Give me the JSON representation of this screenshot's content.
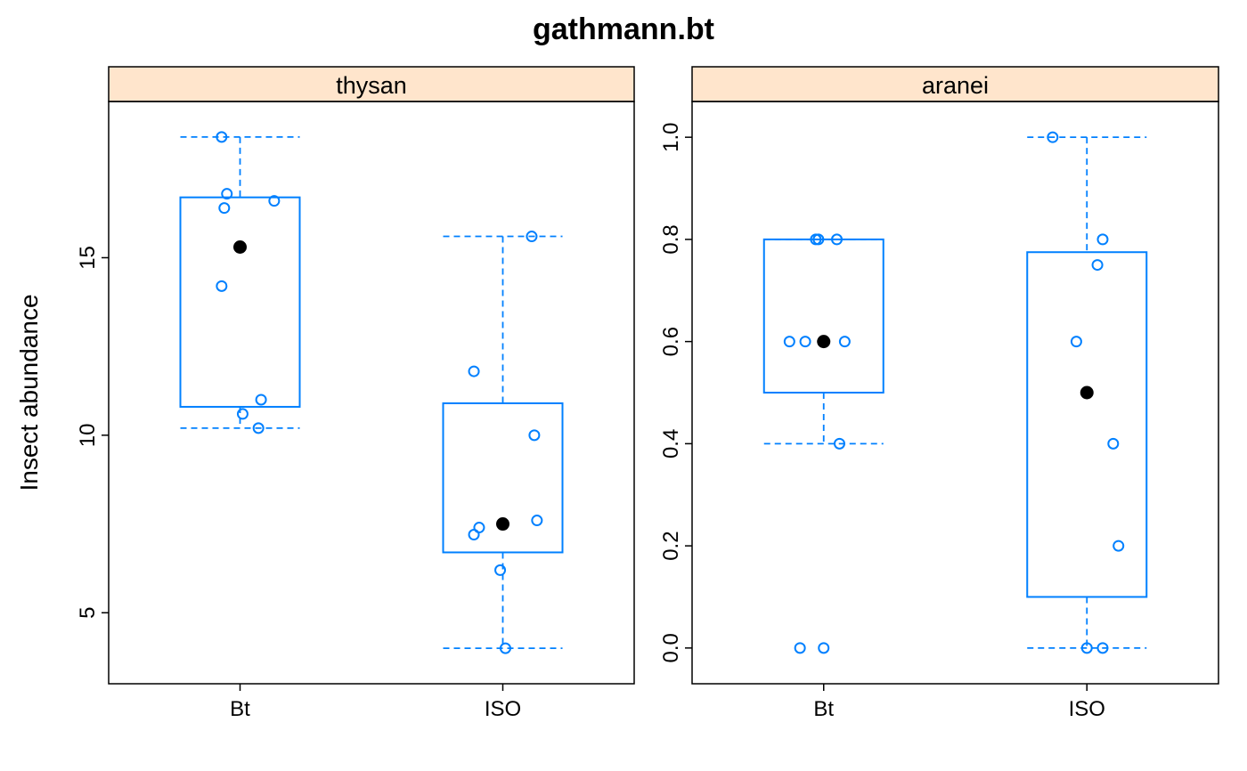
{
  "colors": {
    "box": "#0080ff",
    "strip_bg": "#ffe5cc",
    "median": "#000000",
    "frame": "#000000"
  },
  "chart_data": {
    "type": "box",
    "title": "gathmann.bt",
    "ylabel": "Insect abundance",
    "xlabel": "",
    "categories": [
      "Bt",
      "ISO"
    ],
    "grid": false,
    "panels": [
      {
        "name": "thysan",
        "ylim": [
          3,
          19.4
        ],
        "yticks": [
          5,
          10,
          15
        ],
        "boxes": [
          {
            "category": "Bt",
            "min": 10.2,
            "q1": 10.8,
            "median": 15.3,
            "q3": 16.7,
            "max": 18.4
          },
          {
            "category": "ISO",
            "min": 4.0,
            "q1": 6.7,
            "median": 7.5,
            "q3": 10.9,
            "max": 15.6
          }
        ],
        "points": [
          {
            "category": "Bt",
            "x_jitter": -0.07,
            "y": 18.4
          },
          {
            "category": "Bt",
            "x_jitter": -0.05,
            "y": 16.8
          },
          {
            "category": "Bt",
            "x_jitter": 0.13,
            "y": 16.6
          },
          {
            "category": "Bt",
            "x_jitter": -0.06,
            "y": 16.4
          },
          {
            "category": "Bt",
            "x_jitter": -0.07,
            "y": 14.2
          },
          {
            "category": "Bt",
            "x_jitter": 0.08,
            "y": 11.0
          },
          {
            "category": "Bt",
            "x_jitter": 0.01,
            "y": 10.6
          },
          {
            "category": "Bt",
            "x_jitter": 0.07,
            "y": 10.2
          },
          {
            "category": "ISO",
            "x_jitter": 0.11,
            "y": 15.6
          },
          {
            "category": "ISO",
            "x_jitter": -0.11,
            "y": 11.8
          },
          {
            "category": "ISO",
            "x_jitter": 0.12,
            "y": 10.0
          },
          {
            "category": "ISO",
            "x_jitter": 0.13,
            "y": 7.6
          },
          {
            "category": "ISO",
            "x_jitter": -0.09,
            "y": 7.4
          },
          {
            "category": "ISO",
            "x_jitter": -0.11,
            "y": 7.2
          },
          {
            "category": "ISO",
            "x_jitter": -0.01,
            "y": 6.2
          },
          {
            "category": "ISO",
            "x_jitter": 0.01,
            "y": 4.0
          }
        ]
      },
      {
        "name": "aranei",
        "ylim": [
          -0.07,
          1.07
        ],
        "yticks": [
          0.0,
          0.2,
          0.4,
          0.6,
          0.8,
          1.0
        ],
        "ytick_labels": [
          "0.0",
          "0.2",
          "0.4",
          "0.6",
          "0.8",
          "1.0"
        ],
        "boxes": [
          {
            "category": "Bt",
            "min": 0.4,
            "q1": 0.5,
            "median": 0.6,
            "q3": 0.8,
            "max": 0.8
          },
          {
            "category": "ISO",
            "min": 0.0,
            "q1": 0.1,
            "median": 0.5,
            "q3": 0.775,
            "max": 1.0
          }
        ],
        "points": [
          {
            "category": "Bt",
            "x_jitter": -0.03,
            "y": 0.8
          },
          {
            "category": "Bt",
            "x_jitter": -0.02,
            "y": 0.8
          },
          {
            "category": "Bt",
            "x_jitter": 0.05,
            "y": 0.8
          },
          {
            "category": "Bt",
            "x_jitter": -0.13,
            "y": 0.6
          },
          {
            "category": "Bt",
            "x_jitter": -0.07,
            "y": 0.6
          },
          {
            "category": "Bt",
            "x_jitter": 0.08,
            "y": 0.6
          },
          {
            "category": "Bt",
            "x_jitter": 0.06,
            "y": 0.4
          },
          {
            "category": "Bt",
            "x_jitter": -0.09,
            "y": 0.0
          },
          {
            "category": "Bt",
            "x_jitter": 0.0,
            "y": 0.0
          },
          {
            "category": "ISO",
            "x_jitter": -0.13,
            "y": 1.0
          },
          {
            "category": "ISO",
            "x_jitter": 0.06,
            "y": 0.8
          },
          {
            "category": "ISO",
            "x_jitter": 0.04,
            "y": 0.75
          },
          {
            "category": "ISO",
            "x_jitter": -0.04,
            "y": 0.6
          },
          {
            "category": "ISO",
            "x_jitter": 0.1,
            "y": 0.4
          },
          {
            "category": "ISO",
            "x_jitter": 0.12,
            "y": 0.2
          },
          {
            "category": "ISO",
            "x_jitter": 0.0,
            "y": 0.0
          },
          {
            "category": "ISO",
            "x_jitter": 0.06,
            "y": 0.0
          }
        ]
      }
    ]
  }
}
